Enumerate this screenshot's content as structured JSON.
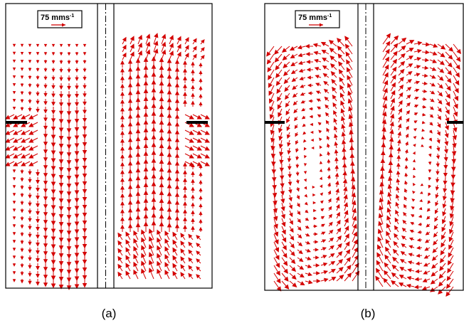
{
  "panels": [
    {
      "label": "(a)",
      "scale": {
        "text": "75 mms",
        "superscript": "-1"
      }
    },
    {
      "label": "(b)",
      "scale": {
        "text": "75 mms",
        "superscript": "-1"
      }
    }
  ]
}
